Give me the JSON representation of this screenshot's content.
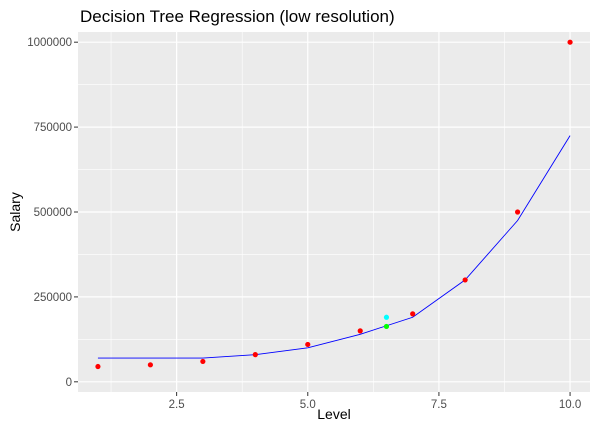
{
  "chart_data": {
    "type": "scatter",
    "title": "Decision Tree Regression (low resolution)",
    "xlabel": "Level",
    "ylabel": "Salary",
    "xlim": [
      0.62,
      10.38
    ],
    "ylim": [
      -30000,
      1030000
    ],
    "x_ticks": [
      2.5,
      5.0,
      7.5,
      10.0
    ],
    "x_tick_labels": [
      "2.5",
      "5.0",
      "7.5",
      "10.0"
    ],
    "y_ticks": [
      0,
      250000,
      500000,
      750000,
      1000000
    ],
    "y_tick_labels": [
      "0",
      "250000",
      "500000",
      "750000",
      "1000000"
    ],
    "grid": true,
    "panel_background": "#ebebeb",
    "grid_color": "#ffffff",
    "series": [
      {
        "kind": "points",
        "color": "#ff0000",
        "x": [
          1,
          2,
          3,
          4,
          5,
          6,
          7,
          8,
          9,
          10
        ],
        "y": [
          45000,
          50000,
          60000,
          80000,
          110000,
          150000,
          200000,
          300000,
          500000,
          1000000
        ]
      },
      {
        "kind": "line",
        "color": "#0000ff",
        "x": [
          1,
          2,
          3,
          4,
          5,
          6,
          7,
          8,
          9,
          10
        ],
        "y": [
          70000,
          70000,
          70000,
          80000,
          100000,
          140000,
          190000,
          300000,
          475000,
          725000
        ]
      },
      {
        "kind": "points",
        "color": "#00ffff",
        "x": [
          6.5
        ],
        "y": [
          190000
        ]
      },
      {
        "kind": "points",
        "color": "#00ff00",
        "x": [
          6.5
        ],
        "y": [
          163000
        ]
      }
    ]
  }
}
